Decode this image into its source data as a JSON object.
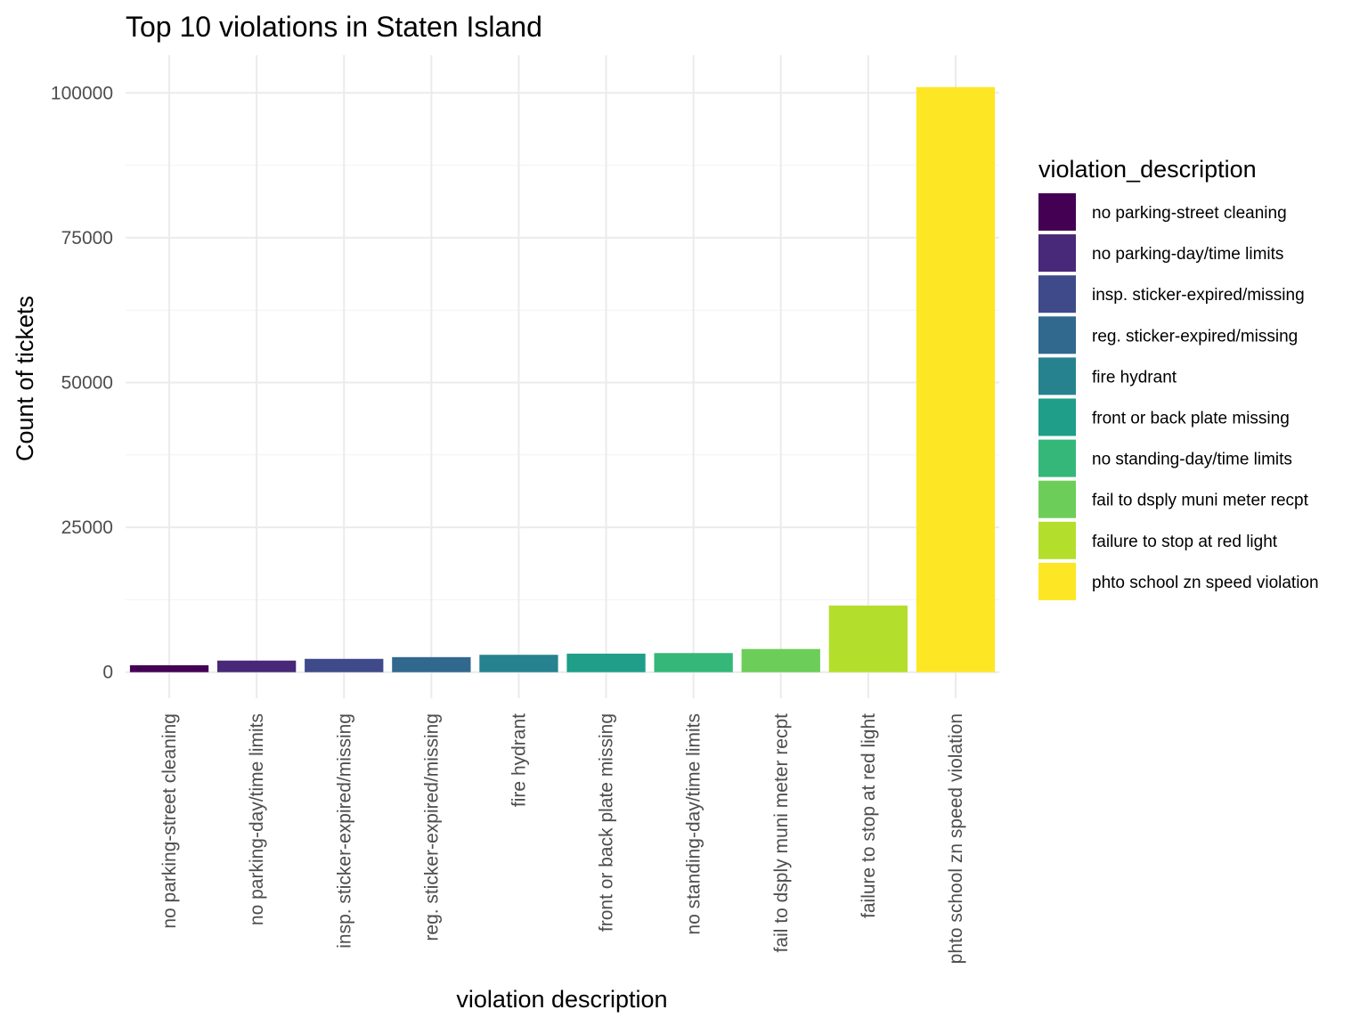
{
  "chart_data": {
    "type": "bar",
    "title": "Top 10 violations in Staten Island",
    "xlabel": "violation description",
    "ylabel": "Count of tickets",
    "categories": [
      "no parking-street cleaning",
      "no parking-day/time limits",
      "insp. sticker-expired/missing",
      "reg. sticker-expired/missing",
      "fire hydrant",
      "front or back plate missing",
      "no standing-day/time limits",
      "fail to dsply muni meter recpt",
      "failure to stop at red light",
      "phto school zn speed violation"
    ],
    "values": [
      1200,
      2000,
      2300,
      2600,
      3000,
      3200,
      3300,
      4000,
      11500,
      101000
    ],
    "colors": [
      "#440154",
      "#482878",
      "#3E4A89",
      "#31688E",
      "#26828E",
      "#1F9E89",
      "#35B779",
      "#6DCD59",
      "#B4DE2C",
      "#FDE725"
    ],
    "yticks": [
      0,
      25000,
      50000,
      75000,
      100000
    ],
    "ylim": [
      -4500,
      106500
    ],
    "grid": true,
    "legend": {
      "title": "violation_description",
      "placement": "right"
    }
  }
}
